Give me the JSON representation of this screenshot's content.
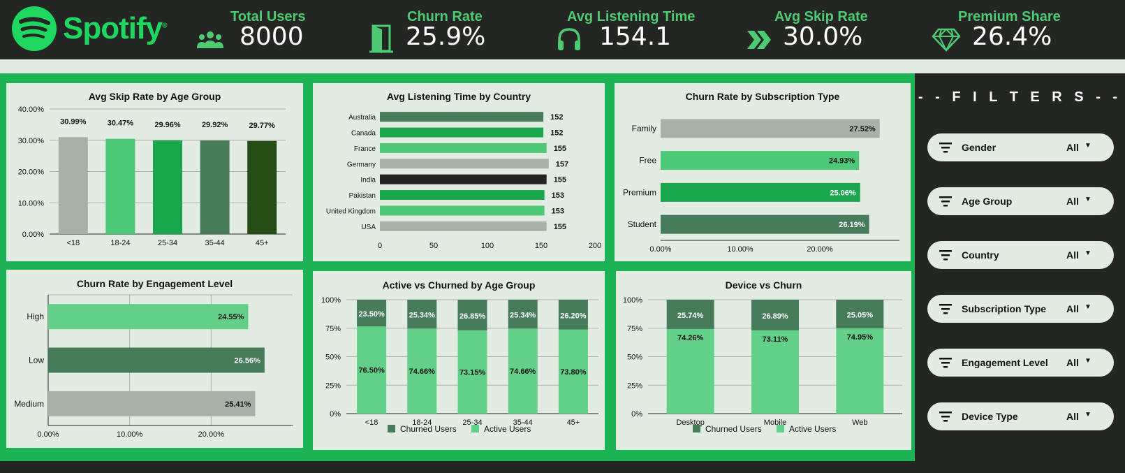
{
  "brand": {
    "name": "Spotify",
    "trademark": "®",
    "icon": "spotify-logo-icon"
  },
  "kpis": [
    {
      "title": "Total Users",
      "value": "8000",
      "icon": "users-icon"
    },
    {
      "title": "Churn Rate",
      "value": "25.9%",
      "icon": "door-exit-icon"
    },
    {
      "title": "Avg Listening Time",
      "value": "154.1",
      "icon": "headphones-icon"
    },
    {
      "title": "Avg Skip Rate",
      "value": "30.0%",
      "icon": "chevrons-right-icon"
    },
    {
      "title": "Premium Share",
      "value": "26.4%",
      "icon": "diamond-icon"
    }
  ],
  "colors": {
    "dark": "#232622",
    "accent": "#1db354",
    "panel": "#e3ece3",
    "green_light": "#4ec978",
    "green_mid": "#1aa64d",
    "green_dark": "#477c5b",
    "green_darkest": "#274d16",
    "gray": "#a8b1a7",
    "black": "#222222",
    "green_pale": "#63d08a"
  },
  "filters": {
    "title": "- - F I L T E R S - -",
    "items": [
      {
        "label": "Gender",
        "value": "All",
        "icon": "filter-icon"
      },
      {
        "label": "Age Group",
        "value": "All",
        "icon": "filter-icon"
      },
      {
        "label": "Country",
        "value": "All",
        "icon": "filter-icon"
      },
      {
        "label": "Subscription Type",
        "value": "All",
        "icon": "filter-icon"
      },
      {
        "label": "Engagement Level",
        "value": "All",
        "icon": "filter-icon"
      },
      {
        "label": "Device Type",
        "value": "All",
        "icon": "filter-icon"
      }
    ]
  },
  "chart_data": [
    {
      "id": "skip-age",
      "type": "bar",
      "title": "Avg Skip Rate by Age Group",
      "categories": [
        "<18",
        "18-24",
        "25-34",
        "35-44",
        "45+"
      ],
      "values": [
        30.99,
        30.47,
        29.96,
        29.92,
        29.77
      ],
      "labels": [
        "30.99%",
        "30.47%",
        "29.96%",
        "29.92%",
        "29.77%"
      ],
      "bar_colors": [
        "#a8b1a7",
        "#4ec978",
        "#1aa64d",
        "#477c5b",
        "#274d16"
      ],
      "yticks": [
        "0.00%",
        "10.00%",
        "20.00%",
        "30.00%",
        "40.00%"
      ],
      "ylim": [
        0,
        40
      ],
      "grid": true
    },
    {
      "id": "listen-country",
      "type": "bar",
      "orientation": "horizontal",
      "title": "Avg Listening Time by Country",
      "categories": [
        "Australia",
        "Canada",
        "France",
        "Germany",
        "India",
        "Pakistan",
        "United Kingdom",
        "USA"
      ],
      "values": [
        152,
        152,
        155,
        157,
        155,
        153,
        153,
        155
      ],
      "labels": [
        "152",
        "152",
        "155",
        "157",
        "155",
        "153",
        "153",
        "155"
      ],
      "bar_colors": [
        "#477c5b",
        "#1aa64d",
        "#4ec978",
        "#a8b1a7",
        "#222222",
        "#1aa64d",
        "#4ec978",
        "#a8b1a7"
      ],
      "xticks": [
        "0",
        "50",
        "100",
        "150",
        "200"
      ],
      "xlim": [
        0,
        200
      ]
    },
    {
      "id": "churn-sub",
      "type": "bar",
      "orientation": "horizontal",
      "title": "Churn Rate by Subscription Type",
      "categories": [
        "Family",
        "Free",
        "Premium",
        "Student"
      ],
      "values": [
        27.52,
        24.93,
        25.06,
        26.19
      ],
      "labels": [
        "27.52%",
        "24.93%",
        "25.06%",
        "26.19%"
      ],
      "bar_colors": [
        "#a8b1a7",
        "#4ec978",
        "#1aa64d",
        "#477c5b"
      ],
      "label_colors": [
        "#111111",
        "#111111",
        "#ffffff",
        "#ffffff"
      ],
      "xticks": [
        "0.00%",
        "10.00%",
        "20.00%"
      ],
      "xlim": [
        0,
        30
      ]
    },
    {
      "id": "churn-engage",
      "type": "bar",
      "orientation": "horizontal",
      "title": "Churn Rate by Engagement Level",
      "categories": [
        "High",
        "Low",
        "Medium"
      ],
      "values": [
        24.55,
        26.56,
        25.41
      ],
      "labels": [
        "24.55%",
        "26.56%",
        "25.41%"
      ],
      "bar_colors": [
        "#63d08a",
        "#477c5b",
        "#a8b1a7"
      ],
      "label_colors": [
        "#111111",
        "#ffffff",
        "#111111"
      ],
      "xticks": [
        "0.00%",
        "10.00%",
        "20.00%"
      ],
      "xlim": [
        0,
        30
      ],
      "grid": true
    },
    {
      "id": "active-churn-age",
      "type": "bar",
      "stacked": true,
      "title": "Active vs Churned by Age Group",
      "categories": [
        "<18",
        "18-24",
        "25-34",
        "35-44",
        "45+"
      ],
      "series": [
        {
          "name": "Churned Users",
          "values": [
            23.5,
            25.34,
            26.85,
            25.34,
            26.2
          ],
          "labels": [
            "23.50%",
            "25.34%",
            "26.85%",
            "25.34%",
            "26.20%"
          ],
          "color": "#477c5b"
        },
        {
          "name": "Active Users",
          "values": [
            76.5,
            74.66,
            73.15,
            74.66,
            73.8
          ],
          "labels": [
            "76.50%",
            "74.66%",
            "73.15%",
            "74.66%",
            "73.80%"
          ],
          "color": "#63d08a"
        }
      ],
      "yticks": [
        "0%",
        "25%",
        "50%",
        "75%",
        "100%"
      ],
      "ylim": [
        0,
        100
      ],
      "legend": "bottom"
    },
    {
      "id": "device-churn",
      "type": "bar",
      "stacked": true,
      "title": "Device vs Churn",
      "categories": [
        "Desktop",
        "Mobile",
        "Web"
      ],
      "series": [
        {
          "name": "Churned Users",
          "values": [
            25.74,
            26.89,
            25.05
          ],
          "labels": [
            "25.74%",
            "26.89%",
            "25.05%"
          ],
          "color": "#477c5b"
        },
        {
          "name": "Active Users",
          "values": [
            74.26,
            73.11,
            74.95
          ],
          "labels": [
            "74.26%",
            "73.11%",
            "74.95%"
          ],
          "color": "#63d08a"
        }
      ],
      "yticks": [
        "0%",
        "25%",
        "50%",
        "75%",
        "100%"
      ],
      "ylim": [
        0,
        100
      ],
      "legend": "bottom"
    }
  ]
}
